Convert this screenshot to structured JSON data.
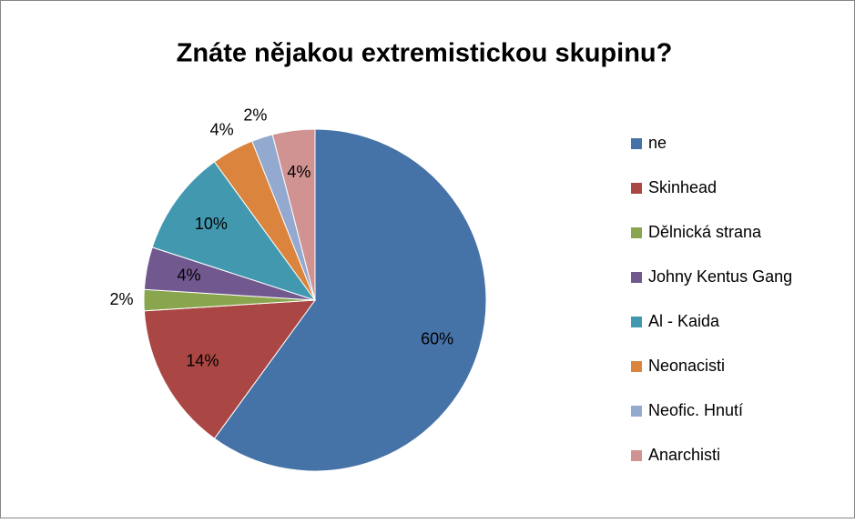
{
  "chart_data": {
    "type": "pie",
    "title": "Znáte nějakou extremistickou skupinu?",
    "categories": [
      "ne",
      "Skinhead",
      "Dělnická strana",
      "Johny Kentus Gang",
      "Al - Kaida",
      "Neonacisti",
      "Neofic. Hnutí",
      "Anarchisti"
    ],
    "values": [
      60,
      14,
      2,
      4,
      10,
      4,
      2,
      4
    ],
    "value_labels": [
      "60%",
      "14%",
      "2%",
      "4%",
      "10%",
      "4%",
      "2%",
      "4%"
    ],
    "colors": [
      "#4572a7",
      "#aa4643",
      "#89a54e",
      "#71588f",
      "#4198af",
      "#db843d",
      "#93a9cf",
      "#d19392"
    ],
    "legend": "right"
  }
}
